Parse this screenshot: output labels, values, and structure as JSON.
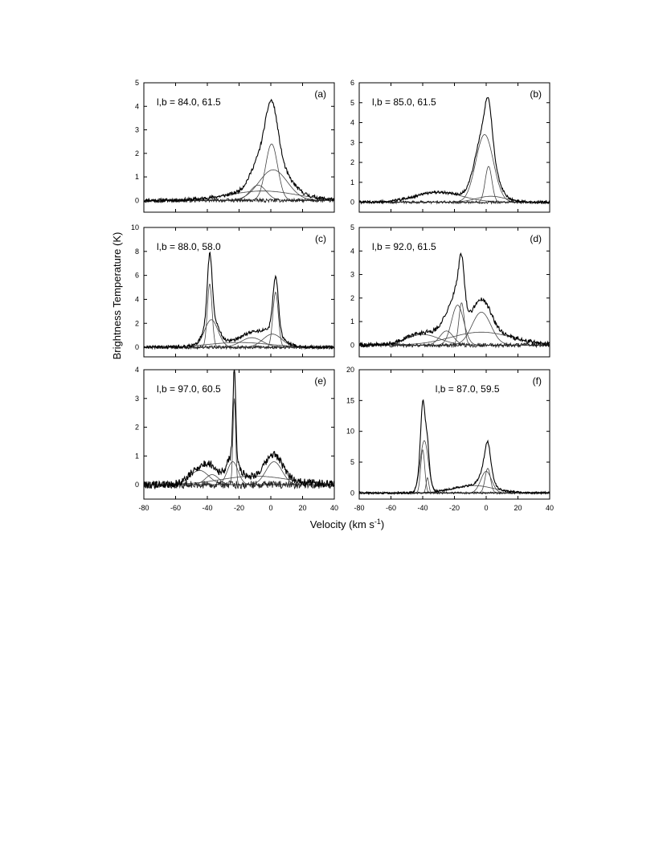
{
  "figure": {
    "ylabel": "Brightness Temperature (K)",
    "xlabel": "Velocity (km s",
    "xlabel_sup": "-1",
    "xlabel_close": ")"
  },
  "chart_data": [
    {
      "type": "line",
      "panel": "(a)",
      "annotation": "l,b = 84.0, 61.5",
      "xlim": [
        -80,
        40
      ],
      "ylim": [
        -0.5,
        5
      ],
      "xticks": [
        "-80",
        "-60",
        "-40",
        "-20",
        "0",
        "20",
        "40"
      ],
      "show_xtick_labels": false,
      "yticks": [
        "0",
        "1",
        "2",
        "3",
        "4",
        "5"
      ],
      "noise": 0.07,
      "components": [
        {
          "amp": 2.4,
          "center": 0.5,
          "fwhm": 9
        },
        {
          "amp": 1.3,
          "center": 1.5,
          "fwhm": 21
        },
        {
          "amp": 0.65,
          "center": -8,
          "fwhm": 12
        },
        {
          "amp": 0.4,
          "center": -5,
          "fwhm": 50
        }
      ]
    },
    {
      "type": "line",
      "panel": "(b)",
      "annotation": "l,b = 85.0, 61.5",
      "xlim": [
        -80,
        40
      ],
      "ylim": [
        -0.5,
        6
      ],
      "xticks": [
        "-80",
        "-60",
        "-40",
        "-20",
        "0",
        "20",
        "40"
      ],
      "show_xtick_labels": false,
      "yticks": [
        "0",
        "1",
        "2",
        "3",
        "4",
        "5",
        "6"
      ],
      "noise": 0.06,
      "components": [
        {
          "amp": 3.4,
          "center": -1,
          "fwhm": 13
        },
        {
          "amp": 1.8,
          "center": 1.5,
          "fwhm": 5
        },
        {
          "amp": 0.5,
          "center": -30,
          "fwhm": 35
        },
        {
          "amp": 0.3,
          "center": 3,
          "fwhm": 22
        }
      ]
    },
    {
      "type": "line",
      "panel": "(c)",
      "annotation": "l,b = 88.0, 58.0",
      "xlim": [
        -80,
        40
      ],
      "ylim": [
        -0.8,
        10
      ],
      "xticks": [
        "-80",
        "-60",
        "-40",
        "-20",
        "0",
        "20",
        "40"
      ],
      "show_xtick_labels": false,
      "yticks": [
        "0",
        "2",
        "4",
        "6",
        "8",
        "10"
      ],
      "noise": 0.12,
      "components": [
        {
          "amp": 5.3,
          "center": -38.5,
          "fwhm": 3.5
        },
        {
          "amp": 2.3,
          "center": -37.5,
          "fwhm": 10
        },
        {
          "amp": 4.6,
          "center": 3,
          "fwhm": 4
        },
        {
          "amp": 1.1,
          "center": 1,
          "fwhm": 14
        },
        {
          "amp": 0.8,
          "center": -12,
          "fwhm": 16
        },
        {
          "amp": 0.4,
          "center": -20,
          "fwhm": 45
        }
      ]
    },
    {
      "type": "line",
      "panel": "(d)",
      "annotation": "l,b = 92.0, 61.5",
      "xlim": [
        -80,
        40
      ],
      "ylim": [
        -0.5,
        5
      ],
      "xticks": [
        "-80",
        "-60",
        "-40",
        "-20",
        "0",
        "20",
        "40"
      ],
      "show_xtick_labels": false,
      "yticks": [
        "0",
        "1",
        "2",
        "3",
        "4",
        "5"
      ],
      "noise": 0.08,
      "components": [
        {
          "amp": 1.8,
          "center": -15.5,
          "fwhm": 4
        },
        {
          "amp": 1.7,
          "center": -18,
          "fwhm": 9
        },
        {
          "amp": 1.4,
          "center": -3,
          "fwhm": 14
        },
        {
          "amp": 0.6,
          "center": -25,
          "fwhm": 10
        },
        {
          "amp": 0.55,
          "center": -3,
          "fwhm": 45
        },
        {
          "amp": 0.45,
          "center": -40,
          "fwhm": 25
        }
      ]
    },
    {
      "type": "line",
      "panel": "(e)",
      "annotation": "l,b = 97.0, 60.5",
      "xlim": [
        -80,
        40
      ],
      "ylim": [
        -0.5,
        4
      ],
      "xticks": [
        "-80",
        "-60",
        "-40",
        "-20",
        "0",
        "20",
        "40"
      ],
      "show_xtick_labels": true,
      "yticks": [
        "0",
        "1",
        "2",
        "3",
        "4"
      ],
      "noise": 0.12,
      "components": [
        {
          "amp": 3.0,
          "center": -23,
          "fwhm": 2
        },
        {
          "amp": 0.8,
          "center": -24,
          "fwhm": 8
        },
        {
          "amp": 0.8,
          "center": 2,
          "fwhm": 12
        },
        {
          "amp": 0.5,
          "center": -45,
          "fwhm": 14
        },
        {
          "amp": 0.35,
          "center": -37,
          "fwhm": 10
        },
        {
          "amp": 0.3,
          "center": -10,
          "fwhm": 50
        }
      ]
    },
    {
      "type": "line",
      "panel": "(f)",
      "annotation": "l,b = 87.0, 59.5",
      "xlim": [
        -80,
        40
      ],
      "ylim": [
        -1,
        20
      ],
      "xticks": [
        "-80",
        "-60",
        "-40",
        "-20",
        "0",
        "20",
        "40"
      ],
      "show_xtick_labels": true,
      "yticks": [
        "0",
        "5",
        "10",
        "15",
        "20"
      ],
      "noise": 0.15,
      "components": [
        {
          "amp": 8.5,
          "center": -39,
          "fwhm": 6
        },
        {
          "amp": 7.0,
          "center": -40,
          "fwhm": 3
        },
        {
          "amp": 4.0,
          "center": 1,
          "fwhm": 4
        },
        {
          "amp": 3.5,
          "center": 0,
          "fwhm": 8
        },
        {
          "amp": 2.5,
          "center": -37,
          "fwhm": 2
        },
        {
          "amp": 1.2,
          "center": -8,
          "fwhm": 30
        }
      ]
    }
  ]
}
